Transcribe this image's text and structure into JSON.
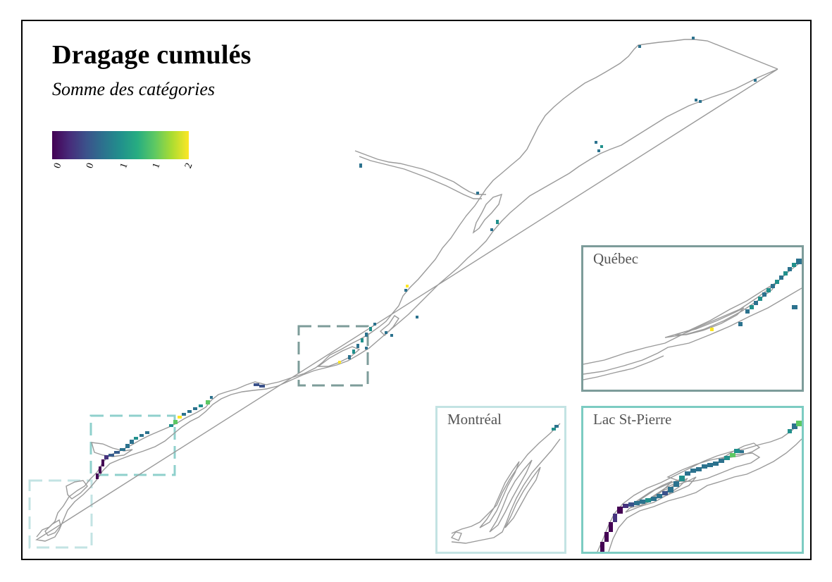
{
  "map": {
    "title": "Dragage cumulés",
    "subtitle": "Somme des catégories"
  },
  "legend": {
    "colormap": "viridis",
    "colors": [
      "#440154",
      "#472b7a",
      "#3b528b",
      "#2c728e",
      "#21908c",
      "#27ad81",
      "#5dc863",
      "#aadc32",
      "#fde725"
    ],
    "ticks": [
      "0",
      "0",
      "1",
      "1",
      "2"
    ],
    "range": [
      0,
      2
    ]
  },
  "insets": {
    "quebec": {
      "label": "Québec",
      "border_color": "#7d9c9a"
    },
    "montreal": {
      "label": "Montréal",
      "border_color": "#c3e3e3"
    },
    "lac_st_pierre": {
      "label": "Lac St-Pierre",
      "border_color": "#7cccc2"
    }
  },
  "colors": {
    "river_outline": "#9a9a9a",
    "frame": "#000000"
  }
}
